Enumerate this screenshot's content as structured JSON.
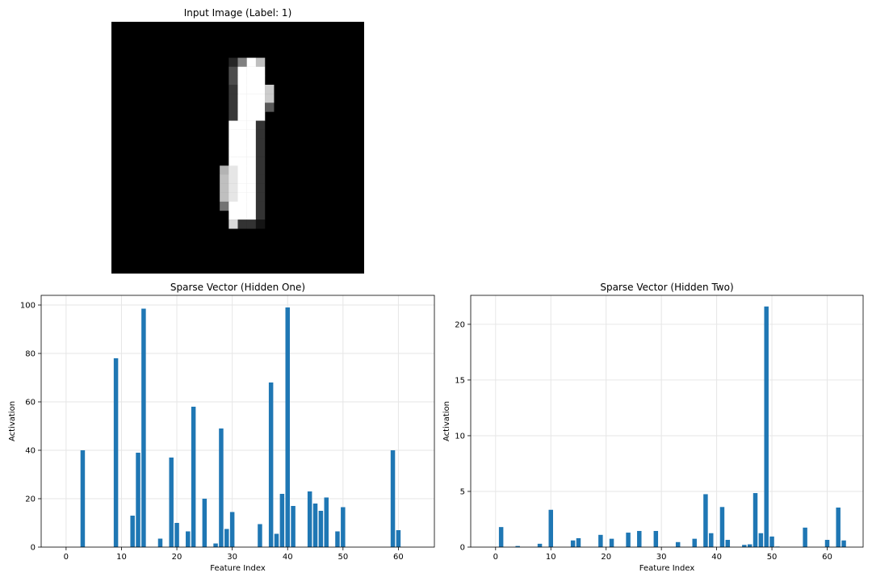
{
  "image_panel": {
    "title": "Input Image (Label: 1)",
    "grid_size": 28,
    "pixels": [
      {
        "r": 4,
        "c": 13,
        "v": 0.15
      },
      {
        "r": 4,
        "c": 14,
        "v": 0.5
      },
      {
        "r": 4,
        "c": 15,
        "v": 1.0
      },
      {
        "r": 4,
        "c": 16,
        "v": 0.75
      },
      {
        "r": 5,
        "c": 13,
        "v": 0.3
      },
      {
        "r": 5,
        "c": 14,
        "v": 1.0
      },
      {
        "r": 5,
        "c": 15,
        "v": 1.0
      },
      {
        "r": 5,
        "c": 16,
        "v": 1.0
      },
      {
        "r": 6,
        "c": 13,
        "v": 0.3
      },
      {
        "r": 6,
        "c": 14,
        "v": 1.0
      },
      {
        "r": 6,
        "c": 15,
        "v": 1.0
      },
      {
        "r": 6,
        "c": 16,
        "v": 1.0
      },
      {
        "r": 7,
        "c": 13,
        "v": 0.22
      },
      {
        "r": 7,
        "c": 14,
        "v": 1.0
      },
      {
        "r": 7,
        "c": 15,
        "v": 1.0
      },
      {
        "r": 7,
        "c": 16,
        "v": 1.0
      },
      {
        "r": 7,
        "c": 17,
        "v": 0.8
      },
      {
        "r": 8,
        "c": 13,
        "v": 0.22
      },
      {
        "r": 8,
        "c": 14,
        "v": 1.0
      },
      {
        "r": 8,
        "c": 15,
        "v": 1.0
      },
      {
        "r": 8,
        "c": 16,
        "v": 1.0
      },
      {
        "r": 8,
        "c": 17,
        "v": 0.8
      },
      {
        "r": 9,
        "c": 13,
        "v": 0.22
      },
      {
        "r": 9,
        "c": 14,
        "v": 1.0
      },
      {
        "r": 9,
        "c": 15,
        "v": 1.0
      },
      {
        "r": 9,
        "c": 16,
        "v": 1.0
      },
      {
        "r": 9,
        "c": 17,
        "v": 0.35
      },
      {
        "r": 10,
        "c": 13,
        "v": 0.22
      },
      {
        "r": 10,
        "c": 14,
        "v": 1.0
      },
      {
        "r": 10,
        "c": 15,
        "v": 1.0
      },
      {
        "r": 10,
        "c": 16,
        "v": 1.0
      },
      {
        "r": 11,
        "c": 13,
        "v": 1.0
      },
      {
        "r": 11,
        "c": 14,
        "v": 1.0
      },
      {
        "r": 11,
        "c": 15,
        "v": 1.0
      },
      {
        "r": 11,
        "c": 16,
        "v": 0.2
      },
      {
        "r": 12,
        "c": 13,
        "v": 1.0
      },
      {
        "r": 12,
        "c": 14,
        "v": 1.0
      },
      {
        "r": 12,
        "c": 15,
        "v": 1.0
      },
      {
        "r": 12,
        "c": 16,
        "v": 0.2
      },
      {
        "r": 13,
        "c": 13,
        "v": 1.0
      },
      {
        "r": 13,
        "c": 14,
        "v": 1.0
      },
      {
        "r": 13,
        "c": 15,
        "v": 1.0
      },
      {
        "r": 13,
        "c": 16,
        "v": 0.2
      },
      {
        "r": 14,
        "c": 13,
        "v": 1.0
      },
      {
        "r": 14,
        "c": 14,
        "v": 1.0
      },
      {
        "r": 14,
        "c": 15,
        "v": 1.0
      },
      {
        "r": 14,
        "c": 16,
        "v": 0.2
      },
      {
        "r": 15,
        "c": 13,
        "v": 1.0
      },
      {
        "r": 15,
        "c": 14,
        "v": 1.0
      },
      {
        "r": 15,
        "c": 15,
        "v": 1.0
      },
      {
        "r": 15,
        "c": 16,
        "v": 0.2
      },
      {
        "r": 16,
        "c": 12,
        "v": 0.7
      },
      {
        "r": 16,
        "c": 13,
        "v": 0.9
      },
      {
        "r": 16,
        "c": 14,
        "v": 1.0
      },
      {
        "r": 16,
        "c": 15,
        "v": 1.0
      },
      {
        "r": 16,
        "c": 16,
        "v": 0.2
      },
      {
        "r": 17,
        "c": 12,
        "v": 0.75
      },
      {
        "r": 17,
        "c": 13,
        "v": 0.9
      },
      {
        "r": 17,
        "c": 14,
        "v": 1.0
      },
      {
        "r": 17,
        "c": 15,
        "v": 1.0
      },
      {
        "r": 17,
        "c": 16,
        "v": 0.2
      },
      {
        "r": 18,
        "c": 12,
        "v": 0.75
      },
      {
        "r": 18,
        "c": 13,
        "v": 0.9
      },
      {
        "r": 18,
        "c": 14,
        "v": 1.0
      },
      {
        "r": 18,
        "c": 15,
        "v": 1.0
      },
      {
        "r": 18,
        "c": 16,
        "v": 0.2
      },
      {
        "r": 19,
        "c": 12,
        "v": 0.75
      },
      {
        "r": 19,
        "c": 13,
        "v": 0.9
      },
      {
        "r": 19,
        "c": 14,
        "v": 1.0
      },
      {
        "r": 19,
        "c": 15,
        "v": 1.0
      },
      {
        "r": 19,
        "c": 16,
        "v": 0.2
      },
      {
        "r": 20,
        "c": 12,
        "v": 0.45
      },
      {
        "r": 20,
        "c": 13,
        "v": 1.0
      },
      {
        "r": 20,
        "c": 14,
        "v": 1.0
      },
      {
        "r": 20,
        "c": 15,
        "v": 1.0
      },
      {
        "r": 20,
        "c": 16,
        "v": 0.2
      },
      {
        "r": 21,
        "c": 13,
        "v": 1.0
      },
      {
        "r": 21,
        "c": 14,
        "v": 1.0
      },
      {
        "r": 21,
        "c": 15,
        "v": 1.0
      },
      {
        "r": 21,
        "c": 16,
        "v": 0.2
      },
      {
        "r": 22,
        "c": 13,
        "v": 0.85
      },
      {
        "r": 22,
        "c": 14,
        "v": 0.2
      },
      {
        "r": 22,
        "c": 15,
        "v": 0.2
      },
      {
        "r": 22,
        "c": 16,
        "v": 0.08
      }
    ]
  },
  "chart_data": [
    {
      "type": "bar",
      "title": "Sparse Vector (Hidden One)",
      "xlabel": "Feature Index",
      "ylabel": "Activation",
      "xlim": [
        -4.5,
        66.5
      ],
      "ylim": [
        0,
        104
      ],
      "xticks": [
        0,
        10,
        20,
        30,
        40,
        50,
        60
      ],
      "yticks": [
        0,
        20,
        40,
        60,
        80,
        100
      ],
      "grid": true,
      "color": "#1f77b4",
      "bars": [
        {
          "x": 3,
          "y": 40
        },
        {
          "x": 9,
          "y": 78
        },
        {
          "x": 12,
          "y": 13
        },
        {
          "x": 13,
          "y": 39
        },
        {
          "x": 14,
          "y": 98.5
        },
        {
          "x": 17,
          "y": 3.5
        },
        {
          "x": 19,
          "y": 37
        },
        {
          "x": 20,
          "y": 10
        },
        {
          "x": 22,
          "y": 6.5
        },
        {
          "x": 23,
          "y": 58
        },
        {
          "x": 25,
          "y": 20
        },
        {
          "x": 27,
          "y": 1.5
        },
        {
          "x": 28,
          "y": 49
        },
        {
          "x": 29,
          "y": 7.5
        },
        {
          "x": 30,
          "y": 14.5
        },
        {
          "x": 35,
          "y": 9.5
        },
        {
          "x": 37,
          "y": 68
        },
        {
          "x": 38,
          "y": 5.5
        },
        {
          "x": 39,
          "y": 22
        },
        {
          "x": 40,
          "y": 99
        },
        {
          "x": 41,
          "y": 17
        },
        {
          "x": 44,
          "y": 23
        },
        {
          "x": 45,
          "y": 18
        },
        {
          "x": 46,
          "y": 15
        },
        {
          "x": 47,
          "y": 20.5
        },
        {
          "x": 49,
          "y": 6.5
        },
        {
          "x": 50,
          "y": 16.5
        },
        {
          "x": 59,
          "y": 40
        },
        {
          "x": 60,
          "y": 7
        }
      ]
    },
    {
      "type": "bar",
      "title": "Sparse Vector (Hidden Two)",
      "xlabel": "Feature Index",
      "ylabel": "Activation",
      "xlim": [
        -4.5,
        66.5
      ],
      "ylim": [
        0,
        22.6
      ],
      "xticks": [
        0,
        10,
        20,
        30,
        40,
        50,
        60
      ],
      "yticks": [
        0,
        5,
        10,
        15,
        20
      ],
      "grid": true,
      "color": "#1f77b4",
      "bars": [
        {
          "x": 1,
          "y": 1.8
        },
        {
          "x": 4,
          "y": 0.1
        },
        {
          "x": 8,
          "y": 0.3
        },
        {
          "x": 10,
          "y": 3.35
        },
        {
          "x": 14,
          "y": 0.6
        },
        {
          "x": 15,
          "y": 0.8
        },
        {
          "x": 19,
          "y": 1.1
        },
        {
          "x": 21,
          "y": 0.75
        },
        {
          "x": 24,
          "y": 1.3
        },
        {
          "x": 26,
          "y": 1.45
        },
        {
          "x": 29,
          "y": 1.45
        },
        {
          "x": 33,
          "y": 0.45
        },
        {
          "x": 36,
          "y": 0.75
        },
        {
          "x": 38,
          "y": 4.75
        },
        {
          "x": 39,
          "y": 1.25
        },
        {
          "x": 41,
          "y": 3.6
        },
        {
          "x": 42,
          "y": 0.65
        },
        {
          "x": 45,
          "y": 0.2
        },
        {
          "x": 46,
          "y": 0.25
        },
        {
          "x": 47,
          "y": 4.85
        },
        {
          "x": 48,
          "y": 1.25
        },
        {
          "x": 49,
          "y": 21.6
        },
        {
          "x": 50,
          "y": 0.95
        },
        {
          "x": 51,
          "y": 0.05
        },
        {
          "x": 56,
          "y": 1.75
        },
        {
          "x": 60,
          "y": 0.65
        },
        {
          "x": 62,
          "y": 3.55
        },
        {
          "x": 63,
          "y": 0.6
        }
      ]
    }
  ]
}
